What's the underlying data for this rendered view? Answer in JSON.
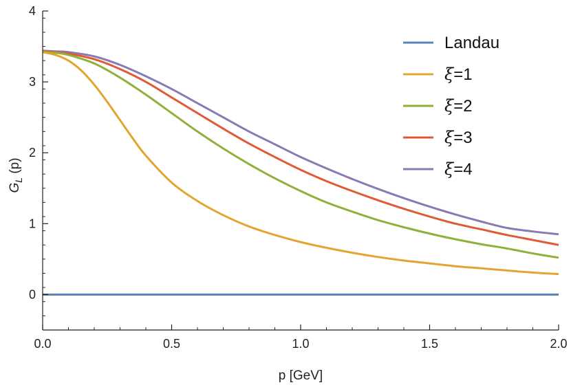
{
  "chart_data": {
    "type": "line",
    "xlabel": "p [GeV]",
    "ylabel": {
      "base": "G",
      "sub": "L",
      "rest": " (p)"
    },
    "xlim": [
      0,
      2.0
    ],
    "ylim": [
      -0.5,
      4
    ],
    "x_ticks": [
      {
        "value": 0,
        "label": "0.0"
      },
      {
        "value": 0.5,
        "label": "0.5"
      },
      {
        "value": 1.0,
        "label": "1.0"
      },
      {
        "value": 1.5,
        "label": "1.5"
      },
      {
        "value": 2.0,
        "label": "2.0"
      }
    ],
    "y_ticks": [
      {
        "value": 0,
        "label": "0"
      },
      {
        "value": 1,
        "label": "1"
      },
      {
        "value": 2,
        "label": "2"
      },
      {
        "value": 3,
        "label": "3"
      },
      {
        "value": 4,
        "label": "4"
      }
    ],
    "grid": false,
    "legend_position": "top-right",
    "series": [
      {
        "name": "Landau",
        "color": "#5b84b8",
        "x": [
          0,
          2.0
        ],
        "y": [
          0,
          0
        ]
      },
      {
        "name": "ξ=1",
        "color": "#e4a530",
        "x": [
          0,
          0.05,
          0.1,
          0.15,
          0.2,
          0.25,
          0.3,
          0.35,
          0.4,
          0.5,
          0.6,
          0.7,
          0.8,
          0.9,
          1.0,
          1.1,
          1.2,
          1.3,
          1.4,
          1.5,
          1.6,
          1.7,
          1.8,
          1.9,
          2.0
        ],
        "y": [
          3.42,
          3.38,
          3.3,
          3.16,
          2.96,
          2.72,
          2.46,
          2.2,
          1.96,
          1.58,
          1.32,
          1.12,
          0.96,
          0.84,
          0.74,
          0.66,
          0.59,
          0.53,
          0.48,
          0.44,
          0.4,
          0.37,
          0.34,
          0.31,
          0.29
        ]
      },
      {
        "name": "ξ=2",
        "color": "#8fb03a",
        "x": [
          0,
          0.05,
          0.1,
          0.2,
          0.3,
          0.4,
          0.5,
          0.6,
          0.7,
          0.8,
          0.9,
          1.0,
          1.1,
          1.2,
          1.3,
          1.4,
          1.5,
          1.6,
          1.7,
          1.8,
          1.9,
          2.0
        ],
        "y": [
          3.42,
          3.41,
          3.38,
          3.26,
          3.06,
          2.82,
          2.56,
          2.3,
          2.06,
          1.84,
          1.64,
          1.46,
          1.3,
          1.17,
          1.05,
          0.95,
          0.86,
          0.78,
          0.71,
          0.65,
          0.58,
          0.52
        ]
      },
      {
        "name": "ξ=3",
        "color": "#e05a35",
        "x": [
          0,
          0.05,
          0.1,
          0.2,
          0.3,
          0.4,
          0.5,
          0.6,
          0.7,
          0.8,
          0.9,
          1.0,
          1.1,
          1.2,
          1.3,
          1.4,
          1.5,
          1.6,
          1.7,
          1.8,
          1.9,
          2.0
        ],
        "y": [
          3.43,
          3.42,
          3.4,
          3.32,
          3.18,
          3.0,
          2.78,
          2.56,
          2.34,
          2.13,
          1.94,
          1.76,
          1.6,
          1.46,
          1.33,
          1.21,
          1.1,
          1.0,
          0.92,
          0.84,
          0.77,
          0.7
        ]
      },
      {
        "name": "ξ=4",
        "color": "#8a79b4",
        "x": [
          0,
          0.05,
          0.1,
          0.2,
          0.3,
          0.4,
          0.5,
          0.6,
          0.7,
          0.8,
          0.9,
          1.0,
          1.1,
          1.2,
          1.3,
          1.4,
          1.5,
          1.6,
          1.7,
          1.8,
          1.9,
          2.0
        ],
        "y": [
          3.44,
          3.43,
          3.42,
          3.36,
          3.24,
          3.08,
          2.9,
          2.7,
          2.5,
          2.3,
          2.12,
          1.94,
          1.78,
          1.63,
          1.49,
          1.36,
          1.24,
          1.13,
          1.03,
          0.94,
          0.89,
          0.85
        ]
      }
    ]
  }
}
